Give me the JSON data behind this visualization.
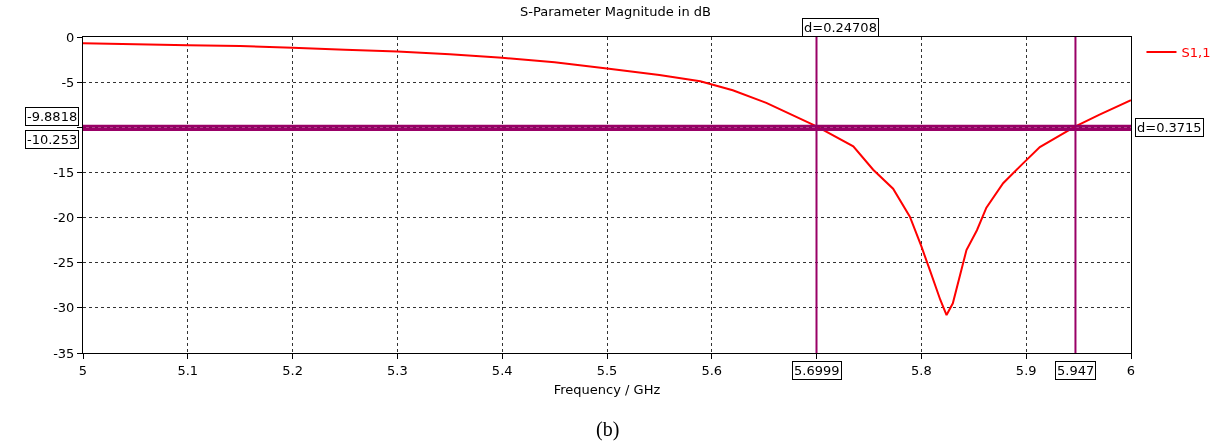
{
  "chart_data": {
    "type": "line",
    "title": "S-Parameter Magnitude in dB",
    "xlabel": "Frequency / GHz",
    "x": [
      5.0,
      5.05,
      5.1,
      5.15,
      5.2,
      5.25,
      5.3,
      5.35,
      5.4,
      5.45,
      5.5,
      5.55,
      5.589,
      5.62,
      5.652,
      5.7,
      5.735,
      5.754,
      5.773,
      5.789,
      5.8,
      5.808,
      5.818,
      5.824,
      5.83,
      5.843,
      5.853,
      5.862,
      5.878,
      5.897,
      5.913,
      5.947,
      5.97,
      6.0
    ],
    "series": [
      {
        "name": "S1,1",
        "color": "#ff0000",
        "values": [
          -0.7,
          -0.8,
          -0.9,
          -1.0,
          -1.2,
          -1.4,
          -1.6,
          -1.9,
          -2.3,
          -2.8,
          -3.5,
          -4.2,
          -4.9,
          -5.9,
          -7.3,
          -9.9,
          -12.1,
          -14.7,
          -16.8,
          -19.9,
          -23.2,
          -25.8,
          -29.1,
          -30.8,
          -29.5,
          -23.6,
          -21.4,
          -18.9,
          -16.2,
          -14.0,
          -12.2,
          -9.9,
          -8.6,
          -7.0
        ]
      }
    ],
    "xlim": [
      5,
      6
    ],
    "ylim": [
      -35,
      0
    ],
    "xticks": [
      5,
      5.1,
      5.2,
      5.3,
      5.4,
      5.5,
      5.6,
      {
        "value": 5.7,
        "label": null
      },
      5.8,
      5.9,
      6
    ],
    "yticks": [
      0,
      -5,
      {
        "value": -10,
        "label": null
      },
      -15,
      -20,
      -25,
      -30,
      -35
    ],
    "ref_lines": [
      {
        "axis": "y",
        "value": -9.8818,
        "label": "-9.8818",
        "color": "#990066"
      },
      {
        "axis": "y",
        "value": -10.253,
        "label": "-10.253",
        "color": "#990066"
      },
      {
        "axis": "x",
        "value": 5.6999,
        "label": "5.6999",
        "color": "#990066"
      },
      {
        "axis": "x",
        "value": 5.947,
        "label": "5.947",
        "color": "#990066"
      }
    ],
    "annotations": [
      "d=0.24708",
      "d=0.3715",
      "(b)"
    ],
    "grid": true,
    "legend": "top right",
    "marker": "none",
    "line_style": "solid"
  }
}
